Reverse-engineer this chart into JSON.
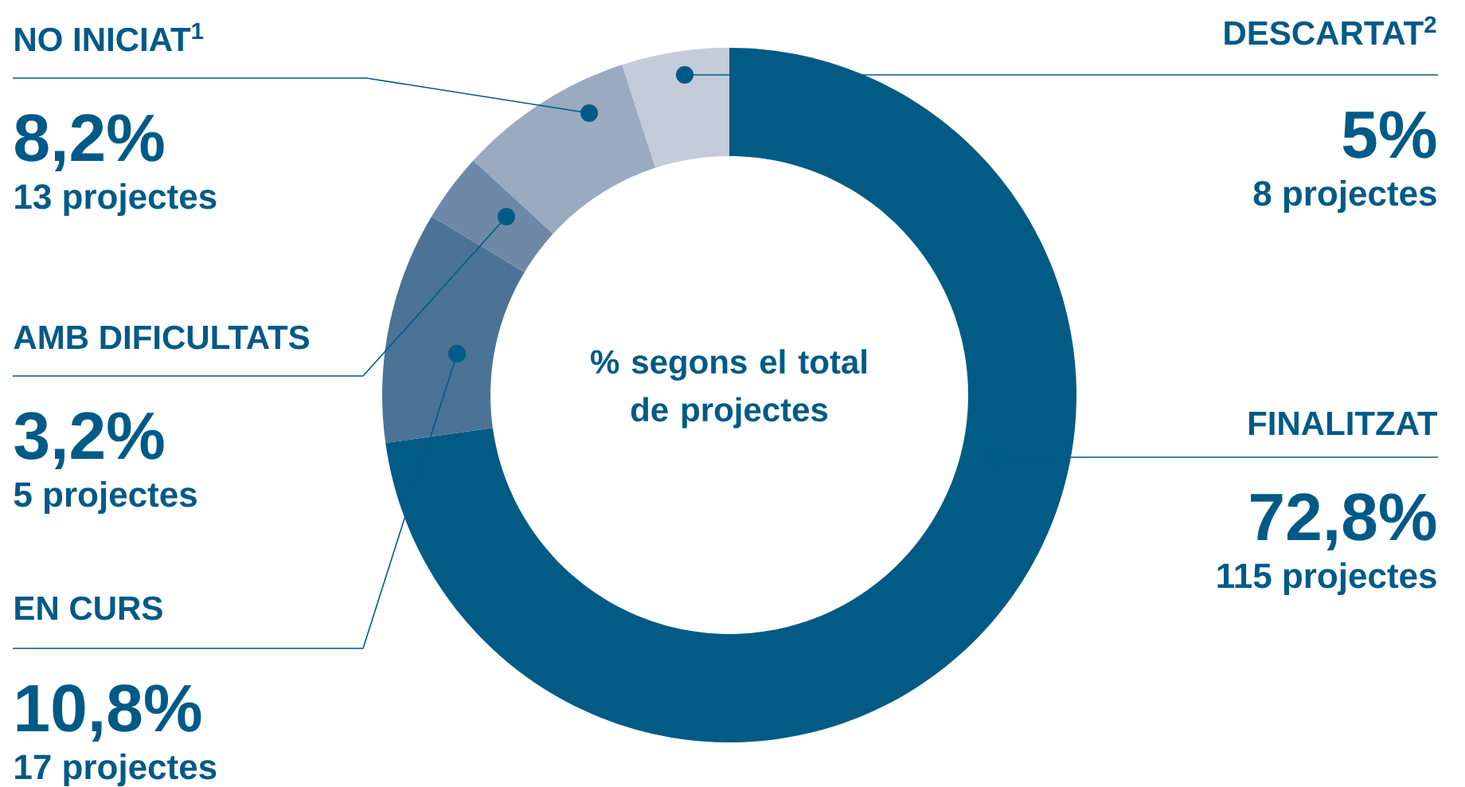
{
  "chart_data": {
    "type": "donut",
    "title": "% segons el total de projectes",
    "categories": [
      "FINALITZAT",
      "EN CURS",
      "AMB DIFICULTATS",
      "NO INICIAT$^{1}$",
      "DESCARTAT$^{2}$"
    ],
    "values": [
      72.8,
      10.8,
      3.2,
      8.2,
      5
    ],
    "colors": [
      "#025b85",
      "#4a7396",
      "#6e89a8",
      "#9aaac0",
      "#c4ccd9"
    ],
    "value_labels": [
      "72,8%",
      "10,8%",
      "3,2%",
      "8,2%",
      "5%"
    ],
    "annotations": [
      "115 projectes",
      "17 projectes",
      "5 projectes",
      "13 projectes",
      "8 projectes"
    ]
  }
}
